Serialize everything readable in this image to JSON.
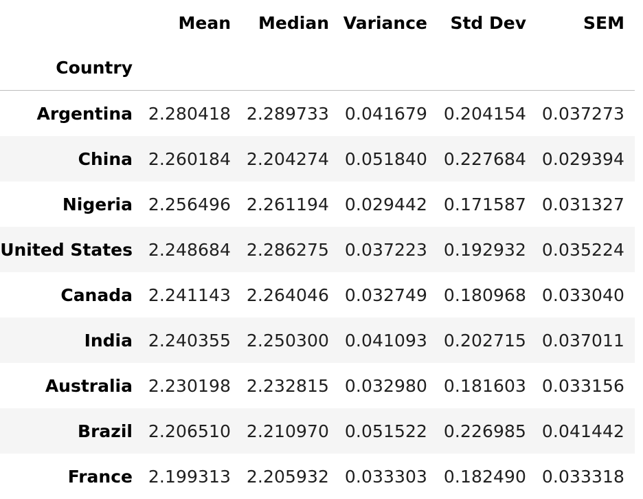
{
  "table": {
    "columns": [
      "Mean",
      "Median",
      "Variance",
      "Std Dev",
      "SEM"
    ],
    "index_name": "Country",
    "rows": [
      {
        "country": "Argentina",
        "values": [
          "2.280418",
          "2.289733",
          "0.041679",
          "0.204154",
          "0.037273"
        ]
      },
      {
        "country": "China",
        "values": [
          "2.260184",
          "2.204274",
          "0.051840",
          "0.227684",
          "0.029394"
        ]
      },
      {
        "country": "Nigeria",
        "values": [
          "2.256496",
          "2.261194",
          "0.029442",
          "0.171587",
          "0.031327"
        ]
      },
      {
        "country": "United States",
        "values": [
          "2.248684",
          "2.286275",
          "0.037223",
          "0.192932",
          "0.035224"
        ]
      },
      {
        "country": "Canada",
        "values": [
          "2.241143",
          "2.264046",
          "0.032749",
          "0.180968",
          "0.033040"
        ]
      },
      {
        "country": "India",
        "values": [
          "2.240355",
          "2.250300",
          "0.041093",
          "0.202715",
          "0.037011"
        ]
      },
      {
        "country": "Australia",
        "values": [
          "2.230198",
          "2.232815",
          "0.032980",
          "0.181603",
          "0.033156"
        ]
      },
      {
        "country": "Brazil",
        "values": [
          "2.206510",
          "2.210970",
          "0.051522",
          "0.226985",
          "0.041442"
        ]
      },
      {
        "country": "France",
        "values": [
          "2.199313",
          "2.205932",
          "0.033303",
          "0.182490",
          "0.033318"
        ]
      }
    ]
  }
}
